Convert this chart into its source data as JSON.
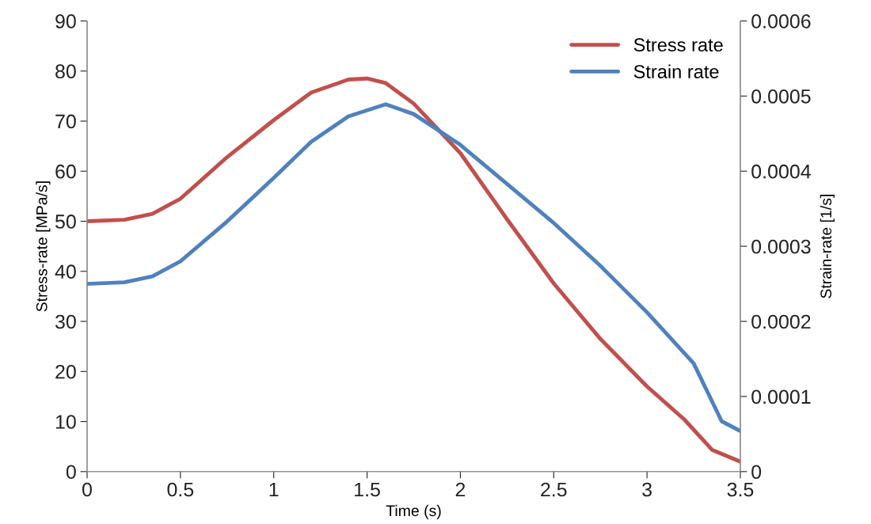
{
  "chart_data": {
    "type": "line",
    "xlabel": "Time (s)",
    "ylabel": "Stress-rate [MPa/s]",
    "y2label": "Strain-rate [1/s]",
    "xlim": [
      0,
      3.5
    ],
    "xticks": [
      0,
      0.5,
      1,
      1.5,
      2,
      2.5,
      3,
      3.5
    ],
    "ylim": [
      0,
      90
    ],
    "yticks": [
      0,
      10,
      20,
      30,
      40,
      50,
      60,
      70,
      80,
      90
    ],
    "y2lim": [
      0,
      0.0006
    ],
    "y2ticks": [
      0,
      0.0001,
      0.0002,
      0.0003,
      0.0004,
      0.0005,
      0.0006
    ],
    "legend": "top right",
    "grid": false,
    "marker": "none",
    "line_style": "solid",
    "series": [
      {
        "name": "Stress rate",
        "color": "#c0504d",
        "x": [
          0,
          0.2,
          0.35,
          0.5,
          0.75,
          1.0,
          1.2,
          1.4,
          1.5,
          1.6,
          1.75,
          2.0,
          2.25,
          2.5,
          2.75,
          3.0,
          3.2,
          3.35,
          3.5
        ],
        "values": [
          50,
          50.3,
          51.5,
          54.5,
          62.8,
          70.2,
          75.7,
          78.3,
          78.5,
          77.6,
          73.5,
          63.6,
          50.4,
          37.6,
          26.5,
          17,
          10.4,
          4.3,
          2
        ]
      },
      {
        "name": "Strain rate",
        "color": "#4f81bd",
        "axis": "y2",
        "x": [
          0,
          0.2,
          0.35,
          0.5,
          0.75,
          1.0,
          1.2,
          1.4,
          1.6,
          1.75,
          2.0,
          2.25,
          2.5,
          2.75,
          3.0,
          3.25,
          3.4,
          3.5
        ],
        "values": [
          0.00025,
          0.000252,
          0.00026,
          0.00028,
          0.000333,
          0.000391,
          0.000439,
          0.000473,
          0.000489,
          0.000476,
          0.000435,
          0.000383,
          0.000331,
          0.000274,
          0.000212,
          0.000144,
          6.7e-05,
          5.4e-05
        ]
      }
    ]
  }
}
